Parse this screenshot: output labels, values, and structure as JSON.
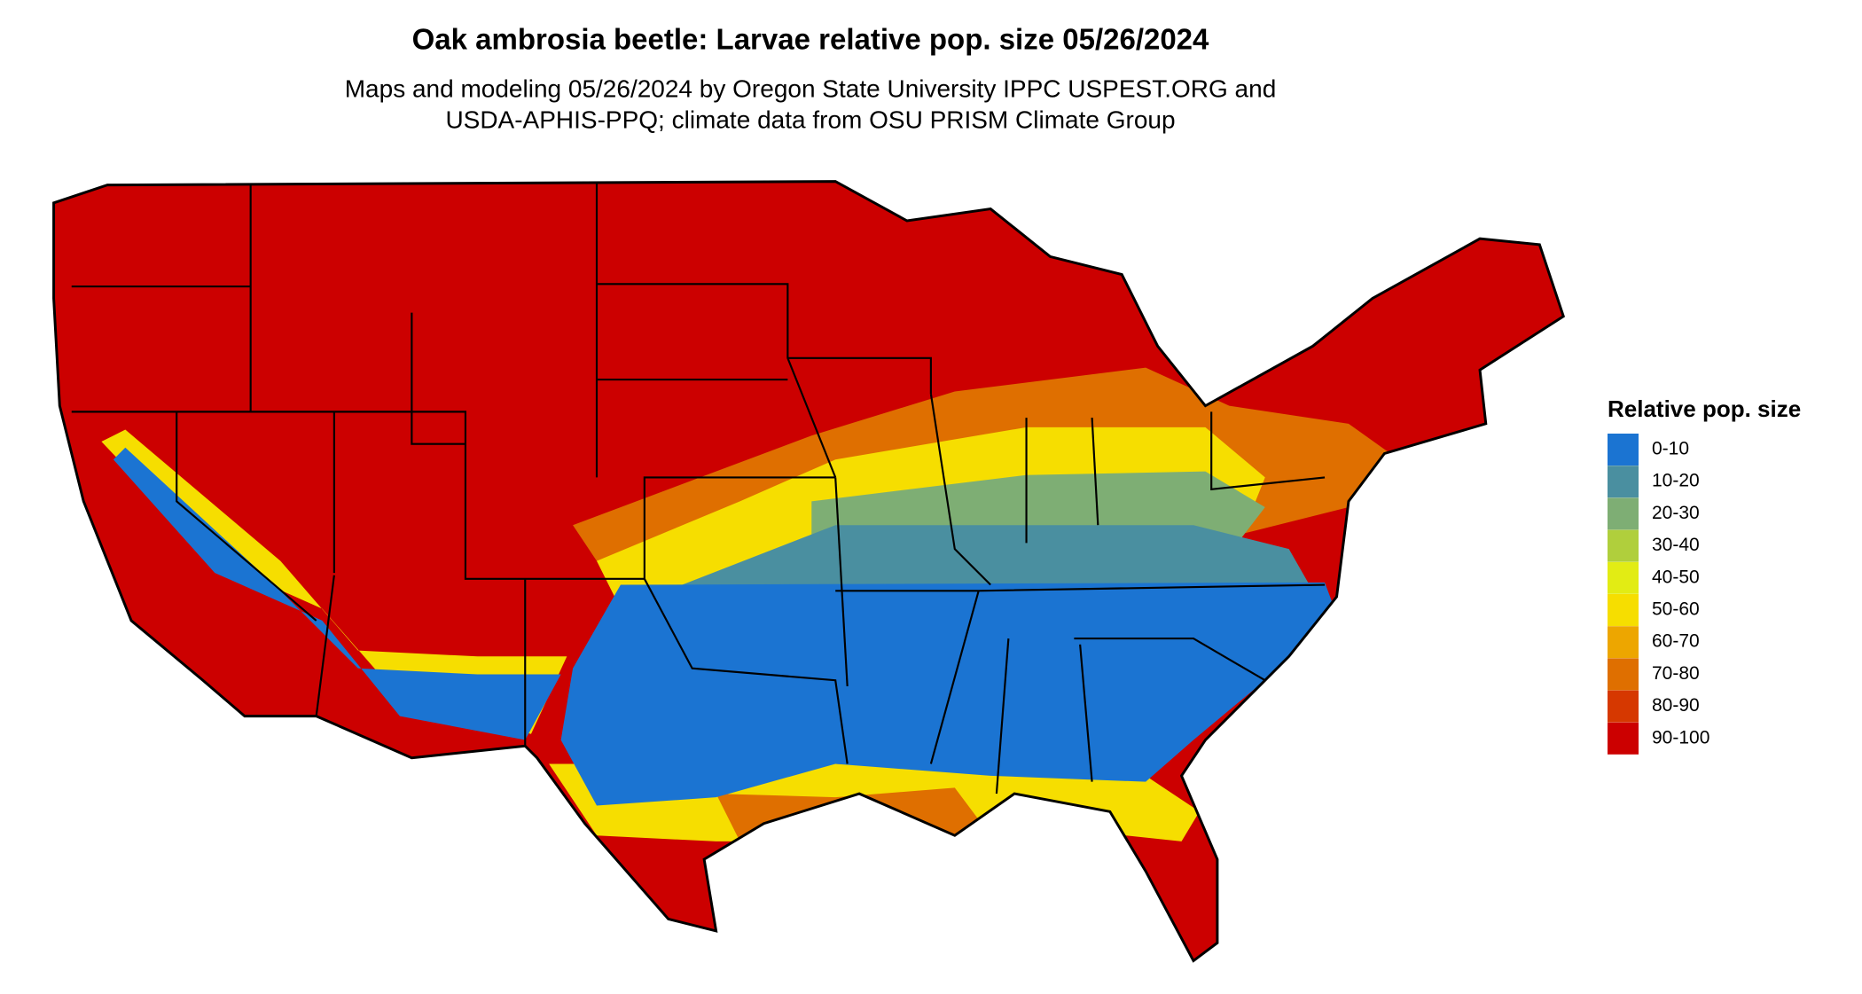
{
  "header": {
    "title": "Oak ambrosia beetle: Larvae relative pop. size 05/26/2024",
    "subtitle_lines": [
      "Maps and modeling 05/26/2024 by Oregon State University IPPC USPEST.ORG and",
      "USDA-APHIS-PPQ; climate data from OSU PRISM Climate Group"
    ]
  },
  "legend": {
    "title": "Relative pop. size",
    "items": [
      {
        "label": "0-10",
        "color": "#1b74d2"
      },
      {
        "label": "10-20",
        "color": "#4a8fa0"
      },
      {
        "label": "20-30",
        "color": "#7eae74"
      },
      {
        "label": "30-40",
        "color": "#b0cf3c"
      },
      {
        "label": "40-50",
        "color": "#e2ec14"
      },
      {
        "label": "50-60",
        "color": "#f6de00"
      },
      {
        "label": "60-70",
        "color": "#eda600"
      },
      {
        "label": "70-80",
        "color": "#df6f00"
      },
      {
        "label": "80-90",
        "color": "#d63800"
      },
      {
        "label": "90-100",
        "color": "#cc0000"
      }
    ]
  }
}
